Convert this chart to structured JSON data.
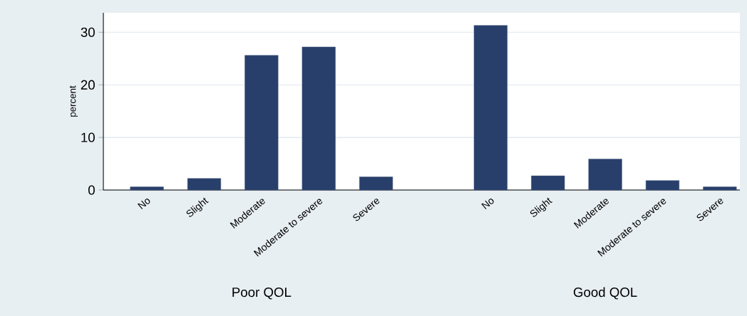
{
  "chart_data": {
    "type": "bar",
    "ylabel": "percent",
    "categories": [
      "No",
      "Slight",
      "Moderate",
      "Moderate to severe",
      "Severe",
      null,
      "No",
      "Slight",
      "Moderate",
      "Moderate to severe",
      "Severe"
    ],
    "values": [
      0.6,
      2.2,
      25.6,
      27.2,
      2.5,
      null,
      31.3,
      2.7,
      5.9,
      1.8,
      0.6
    ],
    "color": "#283f6b",
    "annotations": [
      "Poor QOL",
      "Good QOL"
    ],
    "ylim": [
      0,
      33.7
    ],
    "yticks": [
      0,
      10,
      20,
      30
    ],
    "grid": "y"
  }
}
